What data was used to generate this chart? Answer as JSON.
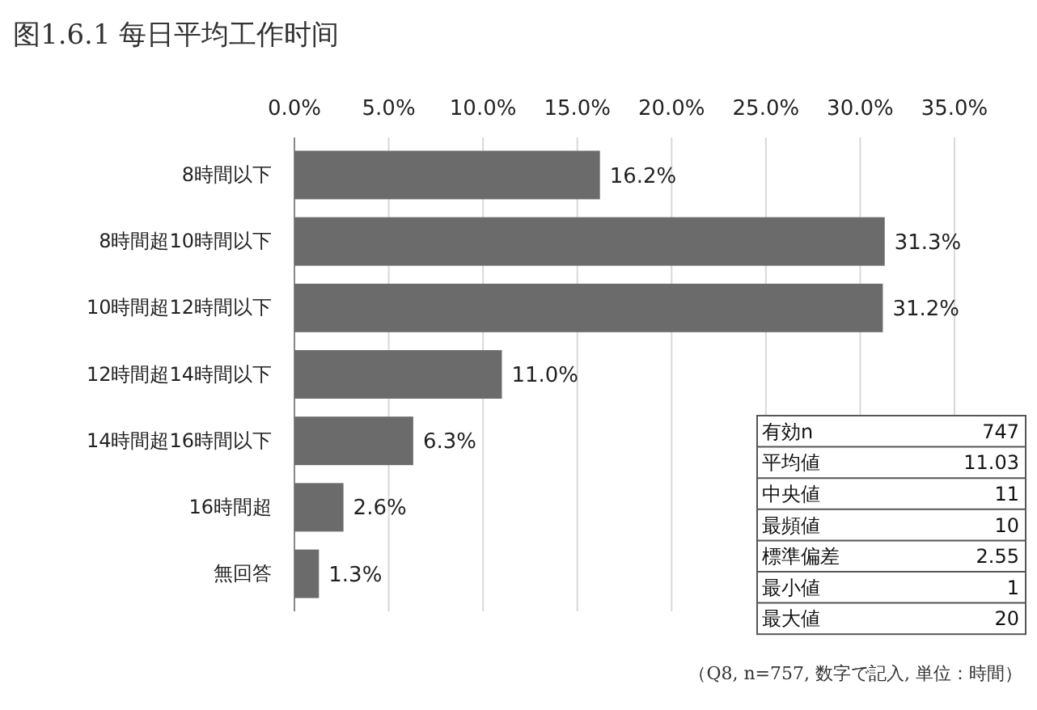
{
  "chart_data": {
    "type": "bar",
    "orientation": "horizontal",
    "title": "图1.6.1 每日平均工作时间",
    "categories": [
      "8時間以下",
      "8時間超10時間以下",
      "10時間超12時間以下",
      "12時間超14時間以下",
      "14時間超16時間以下",
      "16時間超",
      "無回答"
    ],
    "values": [
      16.2,
      31.3,
      31.2,
      11.0,
      6.3,
      2.6,
      1.3
    ],
    "value_labels": [
      "16.2%",
      "31.3%",
      "31.2%",
      "11.0%",
      "6.3%",
      "2.6%",
      "1.3%"
    ],
    "color": "#6b6b6b",
    "xlim": [
      0,
      35
    ],
    "xticks": [
      {
        "value": 0,
        "label": "0.0%"
      },
      {
        "value": 5,
        "label": "5.0%"
      },
      {
        "value": 10,
        "label": "10.0%"
      },
      {
        "value": 15,
        "label": "15.0%"
      },
      {
        "value": 20,
        "label": "20.0%"
      },
      {
        "value": 25,
        "label": "25.0%"
      },
      {
        "value": 30,
        "label": "30.0%"
      },
      {
        "value": 35,
        "label": "35.0%"
      }
    ],
    "grid": "x",
    "annotations": [
      "有効n",
      "747",
      "平均値",
      "11.03",
      "中央値",
      "11",
      "最頻値",
      "10",
      "標準偏差",
      "2.55",
      "最小値",
      "1",
      "最大値",
      "20",
      "（Q8, n=757, 数字で記入, 単位：時間）"
    ]
  }
}
